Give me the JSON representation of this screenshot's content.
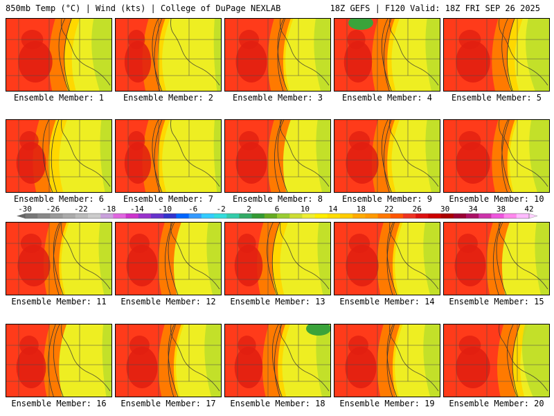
{
  "header": {
    "left": "850mb Temp (°C) | Wind (kts) | College of DuPage NEXLAB",
    "right": "18Z GEFS | F120 Valid: 18Z FRI SEP 26 2025"
  },
  "caption_prefix": "Ensemble Member:",
  "members": [
    {
      "number": 1,
      "caption": "Ensemble Member: 1",
      "hot": 0.85,
      "mid": 0.55,
      "cool": 0.3
    },
    {
      "number": 2,
      "caption": "Ensemble Member: 2",
      "hot": 0.6,
      "mid": 0.4,
      "cool": 0.12
    },
    {
      "number": 3,
      "caption": "Ensemble Member: 3",
      "hot": 0.75,
      "mid": 0.55,
      "cool": 0.25
    },
    {
      "number": 4,
      "caption": "Ensemble Member: 4",
      "hot": 0.65,
      "mid": 0.5,
      "cool": 0.22
    },
    {
      "number": 5,
      "caption": "Ensemble Member: 5",
      "hot": 0.85,
      "mid": 0.6,
      "cool": 0.35
    },
    {
      "number": 6,
      "caption": "Ensemble Member: 6",
      "hot": 0.7,
      "mid": 0.4,
      "cool": 0.18
    },
    {
      "number": 7,
      "caption": "Ensemble Member: 7",
      "hot": 0.6,
      "mid": 0.4,
      "cool": 0.12
    },
    {
      "number": 8,
      "caption": "Ensemble Member: 8",
      "hot": 0.75,
      "mid": 0.55,
      "cool": 0.22
    },
    {
      "number": 9,
      "caption": "Ensemble Member: 9",
      "hot": 0.8,
      "mid": 0.5,
      "cool": 0.22
    },
    {
      "number": 10,
      "caption": "Ensemble Member: 10",
      "hot": 0.85,
      "mid": 0.6,
      "cool": 0.3
    },
    {
      "number": 11,
      "caption": "Ensemble Member: 11",
      "hot": 0.8,
      "mid": 0.5,
      "cool": 0.2
    },
    {
      "number": 12,
      "caption": "Ensemble Member: 12",
      "hot": 0.75,
      "mid": 0.55,
      "cool": 0.22
    },
    {
      "number": 13,
      "caption": "Ensemble Member: 13",
      "hot": 0.65,
      "mid": 0.45,
      "cool": 0.2
    },
    {
      "number": 14,
      "caption": "Ensemble Member: 14",
      "hot": 0.8,
      "mid": 0.55,
      "cool": 0.25
    },
    {
      "number": 15,
      "caption": "Ensemble Member: 15",
      "hot": 0.75,
      "mid": 0.55,
      "cool": 0.22
    },
    {
      "number": 16,
      "caption": "Ensemble Member: 16",
      "hot": 0.7,
      "mid": 0.5,
      "cool": 0.15
    },
    {
      "number": 17,
      "caption": "Ensemble Member: 17",
      "hot": 0.75,
      "mid": 0.55,
      "cool": 0.25
    },
    {
      "number": 18,
      "caption": "Ensemble Member: 18",
      "hot": 0.65,
      "mid": 0.5,
      "cool": 0.22
    },
    {
      "number": 19,
      "caption": "Ensemble Member: 19",
      "hot": 0.75,
      "mid": 0.55,
      "cool": 0.25
    },
    {
      "number": 20,
      "caption": "Ensemble Member: 20",
      "hot": 0.85,
      "mid": 0.65,
      "cool": 0.4
    }
  ],
  "colorbar": {
    "tick_labels": [
      "-30",
      "-26",
      "-22",
      "-18",
      "-14",
      "-10",
      "-6",
      "-2",
      "2",
      "6",
      "10",
      "14",
      "18",
      "22",
      "26",
      "30",
      "34",
      "38",
      "42"
    ],
    "colors": [
      "#777777",
      "#888888",
      "#999999",
      "#aaaaaa",
      "#bbbbbb",
      "#cccccc",
      "#c9a0dc",
      "#e066e0",
      "#cc33cc",
      "#9933cc",
      "#6633cc",
      "#3333cc",
      "#0066ff",
      "#3399ff",
      "#33ccff",
      "#33dddd",
      "#33ccaa",
      "#33aa66",
      "#339933",
      "#66aa22",
      "#99cc33",
      "#ccdd33",
      "#eeee33",
      "#ffee00",
      "#ffdd00",
      "#ffcc00",
      "#ffaa00",
      "#ff9900",
      "#ff7700",
      "#ff5500",
      "#ee3322",
      "#dd1111",
      "#cc0000",
      "#aa0000",
      "#990033",
      "#aa1166",
      "#cc33aa",
      "#ee55dd",
      "#ff88ee",
      "#ffbbff"
    ]
  },
  "map_colors": {
    "very_hot": "#e01f10",
    "hot": "#ff3b1a",
    "warm": "#ff7a00",
    "mild": "#ffb000",
    "pleasant": "#ffd800",
    "cool": "#eeee22",
    "green": "#b8dc2c",
    "deep_green": "#3aa33a"
  }
}
